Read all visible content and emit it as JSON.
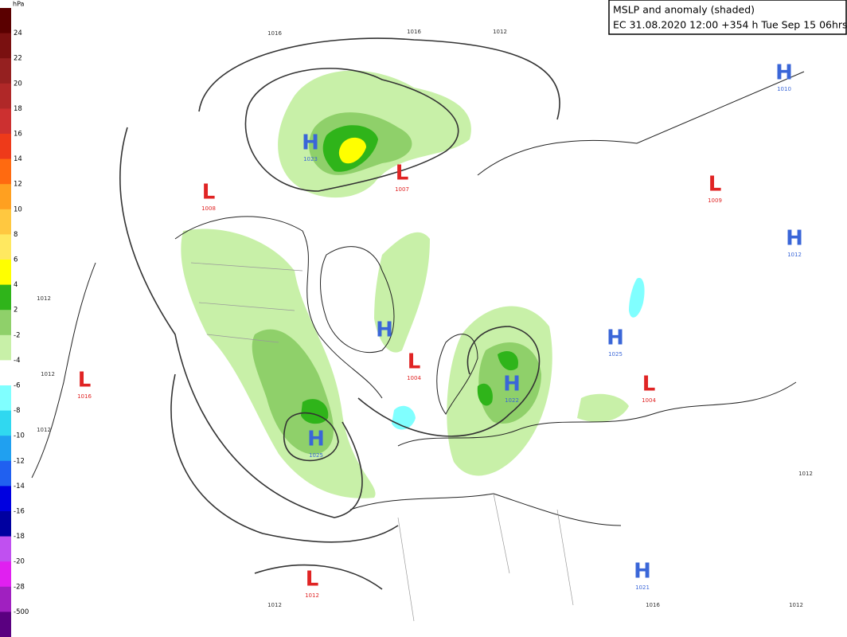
{
  "title": {
    "line1": "MSLP and anomaly (shaded)",
    "line2": "EC 31.08.2020 12:00 +354 h Tue Sep 15 06hrs"
  },
  "legend": {
    "unit": "hPa",
    "labels": [
      "24",
      "22",
      "20",
      "18",
      "16",
      "14",
      "12",
      "10",
      "8",
      "6",
      "4",
      "2",
      "-2",
      "-4",
      "-6",
      "-8",
      "-10",
      "-12",
      "-14",
      "-16",
      "-18",
      "-20",
      "-28",
      "-500"
    ],
    "colors": [
      "#5a0000",
      "#7a1010",
      "#952020",
      "#b02828",
      "#cc3030",
      "#ee3a1a",
      "#ff6a10",
      "#ffa020",
      "#ffc840",
      "#ffe860",
      "#ffff00",
      "#2fb41a",
      "#8fd06a",
      "#c8f0a8",
      "#ffffff",
      "#80ffff",
      "#30d8f0",
      "#20a0f0",
      "#2060f0",
      "#0000e0",
      "#0000a0",
      "#c050f0",
      "#e020f0",
      "#a020c0",
      "#5a0080"
    ]
  },
  "centers": [
    {
      "kind": "H",
      "value": "1023",
      "color": "#3a66d8"
    },
    {
      "kind": "L",
      "value": "1007",
      "color": "#e02424"
    },
    {
      "kind": "L",
      "value": "1008",
      "color": "#e02424"
    },
    {
      "kind": "H",
      "value": "1010",
      "color": "#3a66d8"
    },
    {
      "kind": "L",
      "value": "1009",
      "color": "#e02424"
    },
    {
      "kind": "H",
      "value": "1012",
      "color": "#3a66d8"
    },
    {
      "kind": "L",
      "value": "1004",
      "color": "#e02424"
    },
    {
      "kind": "H",
      "value": "1025",
      "color": "#3a66d8"
    },
    {
      "kind": "L",
      "value": "1004",
      "color": "#e02424"
    },
    {
      "kind": "H",
      "value": "1022",
      "color": "#3a66d8"
    },
    {
      "kind": "L",
      "value": "1016",
      "color": "#e02424"
    },
    {
      "kind": "H",
      "value": "1025",
      "color": "#3a66d8"
    },
    {
      "kind": "L",
      "value": "1012",
      "color": "#e02424"
    },
    {
      "kind": "H",
      "value": "1021",
      "color": "#3a66d8"
    },
    {
      "kind": "H",
      "value": "",
      "color": "#3a66d8"
    }
  ],
  "isobar_labels": [
    "1016",
    "1016",
    "1012",
    "1012",
    "1012",
    "1012",
    "1012",
    "1016",
    "1012",
    "1012"
  ]
}
